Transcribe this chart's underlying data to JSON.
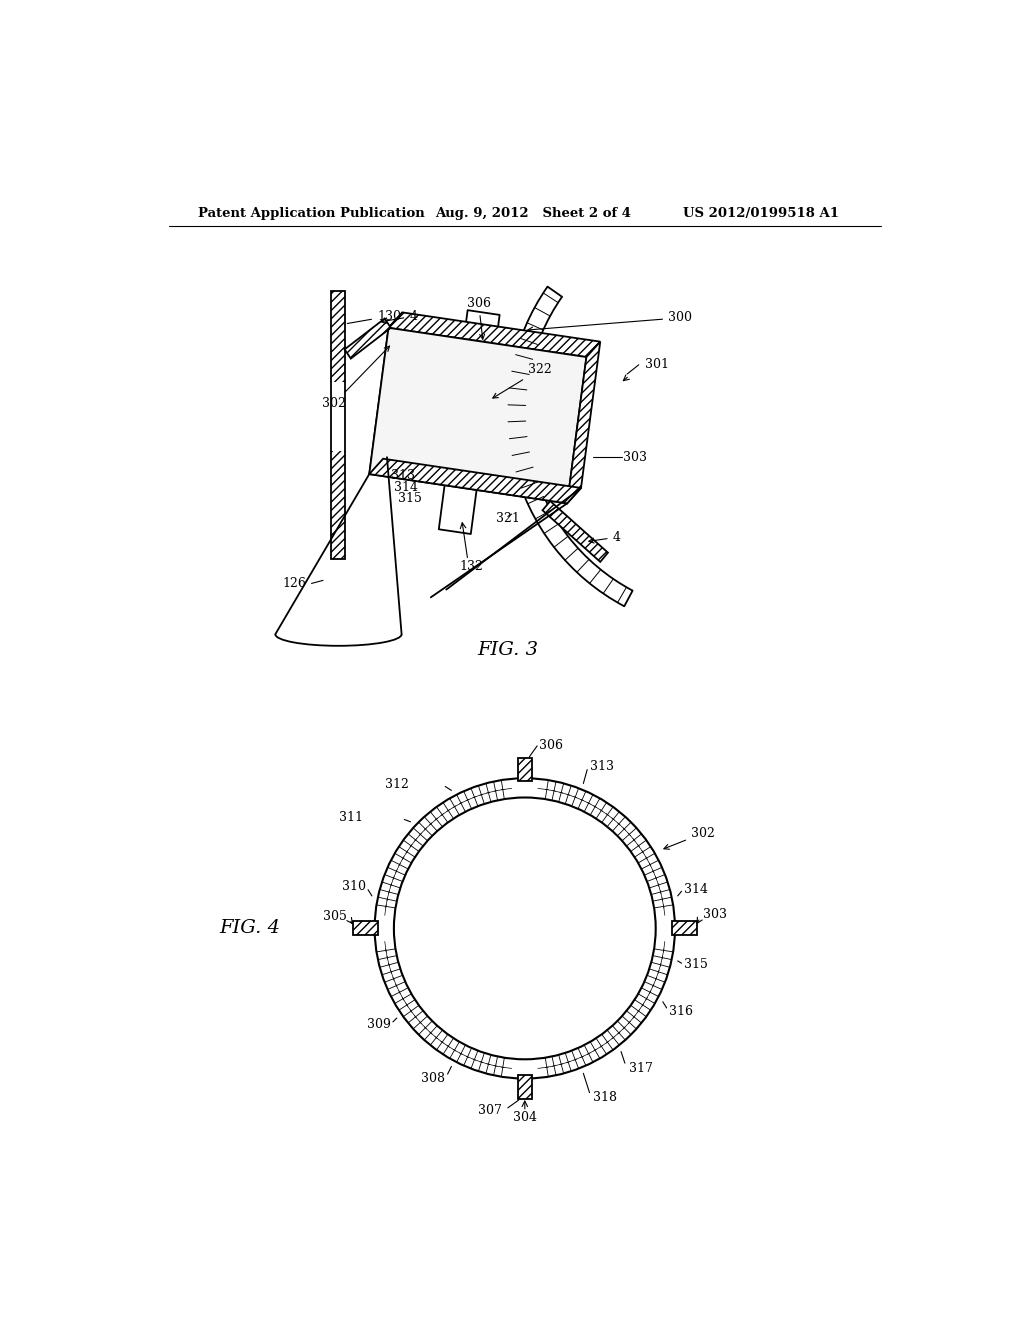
{
  "header_left": "Patent Application Publication",
  "header_mid": "Aug. 9, 2012   Sheet 2 of 4",
  "header_right": "US 2012/0199518 A1",
  "fig3_label": "FIG. 3",
  "fig4_label": "FIG. 4",
  "background": "#ffffff",
  "line_color": "#000000"
}
